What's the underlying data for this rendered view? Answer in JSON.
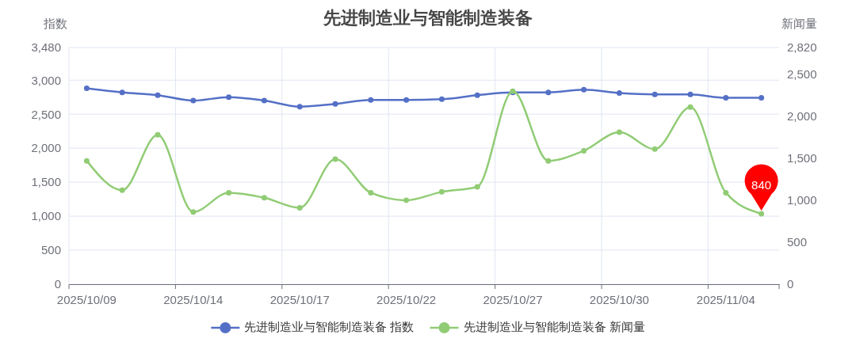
{
  "chart_data": {
    "type": "line",
    "title": "先进制造业与智能制造装备",
    "ylabel": "指数",
    "y2label": "新闻量",
    "categories": [
      "2025/10/09",
      null,
      null,
      "2025/10/14",
      null,
      null,
      "2025/10/17",
      null,
      null,
      "2025/10/22",
      null,
      null,
      "2025/10/27",
      null,
      null,
      "2025/10/30",
      null,
      null,
      "2025/11/04",
      null
    ],
    "series": [
      {
        "name": "先进制造业与智能制造装备 指数",
        "color": "#5470c6",
        "values": [
          2880,
          2820,
          2780,
          2700,
          2750,
          2700,
          2610,
          2650,
          2710,
          2710,
          2720,
          2780,
          2820,
          2820,
          2860,
          2810,
          2790,
          2790,
          2740,
          2740
        ]
      },
      {
        "name": "先进制造业与智能制造装备 新闻量",
        "color": "#91cc75",
        "axis": "y2",
        "values": [
          1470,
          1120,
          1780,
          860,
          1090,
          1030,
          910,
          1490,
          1090,
          1000,
          1100,
          1160,
          2300,
          1470,
          1590,
          1810,
          1610,
          2110,
          1090,
          840
        ],
        "value_labels": [
          null,
          null,
          null,
          null,
          null,
          null,
          null,
          null,
          null,
          null,
          null,
          null,
          null,
          null,
          null,
          null,
          null,
          null,
          null,
          "840"
        ]
      }
    ],
    "ylim": [
      0,
      3480
    ],
    "yticks": [
      0,
      500,
      {
        "value": 1000,
        "label": "1,000"
      },
      {
        "value": 1500,
        "label": "1,500"
      },
      {
        "value": 2000,
        "label": "2,000"
      },
      {
        "value": 2500,
        "label": "2,500"
      },
      {
        "value": 3000,
        "label": "3,000"
      },
      {
        "value": 3480,
        "label": "3,480"
      }
    ],
    "y2lim": [
      0,
      2820
    ],
    "y2ticks": [
      0,
      500,
      {
        "value": 1000,
        "label": "1,000"
      },
      {
        "value": 1500,
        "label": "1,500"
      },
      {
        "value": 2000,
        "label": "2,000"
      },
      {
        "value": 2500,
        "label": "2,500"
      },
      {
        "value": 2820,
        "label": "2,820"
      }
    ],
    "grid": true,
    "legend": "bottom",
    "marker": "circle",
    "line_style": "solid"
  }
}
